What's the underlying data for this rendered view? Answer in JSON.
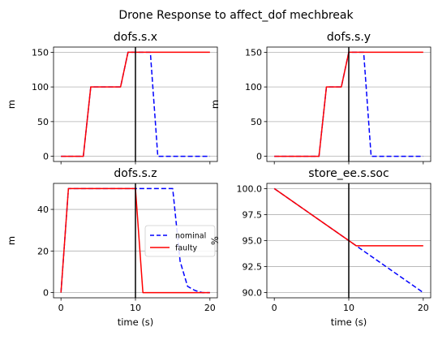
{
  "figure": {
    "title": "Drone Response to affect_dof mechbreak"
  },
  "colors": {
    "nominal": "#0000ff",
    "faulty": "#ff0000",
    "grid": "#b0b0b0",
    "vline": "#000000"
  },
  "chart_data": [
    {
      "type": "line",
      "title": "dofs.s.x",
      "xlabel": "",
      "ylabel": "m",
      "xlim": [
        -1,
        21
      ],
      "ylim": [
        -7.5,
        157.5
      ],
      "xticks": [
        0,
        10,
        20
      ],
      "yticks": [
        0,
        50,
        100,
        150
      ],
      "xticklabels": [
        "",
        "",
        ""
      ],
      "yticklabels": [
        "0",
        "50",
        "100",
        "150"
      ],
      "grid": "y",
      "vline": 10,
      "series": [
        {
          "name": "nominal",
          "style": "dashed",
          "x": [
            0,
            1,
            2,
            3,
            4,
            5,
            6,
            7,
            8,
            9,
            10,
            11,
            12,
            13,
            14,
            15,
            16,
            17,
            18,
            19,
            20
          ],
          "y": [
            0,
            0,
            0,
            0,
            100,
            100,
            100,
            100,
            100,
            150,
            150,
            150,
            150,
            0,
            0,
            0,
            0,
            0,
            0,
            0,
            0
          ]
        },
        {
          "name": "faulty",
          "style": "solid",
          "x": [
            0,
            1,
            2,
            3,
            4,
            5,
            6,
            7,
            8,
            9,
            10,
            11,
            12,
            13,
            14,
            15,
            16,
            17,
            18,
            19,
            20
          ],
          "y": [
            0,
            0,
            0,
            0,
            100,
            100,
            100,
            100,
            100,
            150,
            150,
            150,
            150,
            150,
            150,
            150,
            150,
            150,
            150,
            150,
            150
          ]
        }
      ]
    },
    {
      "type": "line",
      "title": "dofs.s.y",
      "xlabel": "",
      "ylabel": "m",
      "xlim": [
        -1,
        21
      ],
      "ylim": [
        -7.5,
        157.5
      ],
      "xticks": [
        0,
        10,
        20
      ],
      "yticks": [
        0,
        50,
        100,
        150
      ],
      "xticklabels": [
        "",
        "",
        ""
      ],
      "yticklabels": [
        "0",
        "50",
        "100",
        "150"
      ],
      "grid": "y",
      "vline": 10,
      "series": [
        {
          "name": "nominal",
          "style": "dashed",
          "x": [
            0,
            1,
            2,
            3,
            4,
            5,
            6,
            7,
            8,
            9,
            10,
            11,
            12,
            13,
            14,
            15,
            16,
            17,
            18,
            19,
            20
          ],
          "y": [
            0,
            0,
            0,
            0,
            0,
            0,
            0,
            100,
            100,
            100,
            150,
            150,
            150,
            0,
            0,
            0,
            0,
            0,
            0,
            0,
            0
          ]
        },
        {
          "name": "faulty",
          "style": "solid",
          "x": [
            0,
            1,
            2,
            3,
            4,
            5,
            6,
            7,
            8,
            9,
            10,
            11,
            12,
            13,
            14,
            15,
            16,
            17,
            18,
            19,
            20
          ],
          "y": [
            0,
            0,
            0,
            0,
            0,
            0,
            0,
            100,
            100,
            100,
            150,
            150,
            150,
            150,
            150,
            150,
            150,
            150,
            150,
            150,
            150
          ]
        }
      ]
    },
    {
      "type": "line",
      "title": "dofs.s.z",
      "xlabel": "time (s)",
      "ylabel": "m",
      "xlim": [
        -1,
        21
      ],
      "ylim": [
        -2.5,
        52.5
      ],
      "xticks": [
        0,
        10,
        20
      ],
      "yticks": [
        0,
        20,
        40
      ],
      "xticklabels": [
        "0",
        "10",
        "20"
      ],
      "yticklabels": [
        "0",
        "20",
        "40"
      ],
      "grid": "y",
      "vline": 10,
      "legend": {
        "position": "center-right",
        "entries": [
          "nominal",
          "faulty"
        ]
      },
      "series": [
        {
          "name": "nominal",
          "style": "dashed",
          "x": [
            0,
            1,
            2,
            3,
            4,
            5,
            6,
            7,
            8,
            9,
            10,
            11,
            12,
            13,
            14,
            15,
            16,
            17,
            18,
            19,
            20
          ],
          "y": [
            0,
            50,
            50,
            50,
            50,
            50,
            50,
            50,
            50,
            50,
            50,
            50,
            50,
            50,
            50,
            50,
            15,
            3,
            1,
            0,
            0
          ]
        },
        {
          "name": "faulty",
          "style": "solid",
          "x": [
            0,
            1,
            2,
            3,
            4,
            5,
            6,
            7,
            8,
            9,
            10,
            11,
            12,
            13,
            14,
            15,
            16,
            17,
            18,
            19,
            20
          ],
          "y": [
            0,
            50,
            50,
            50,
            50,
            50,
            50,
            50,
            50,
            50,
            50,
            0,
            0,
            0,
            0,
            0,
            0,
            0,
            0,
            0,
            0
          ]
        }
      ]
    },
    {
      "type": "line",
      "title": "store_ee.s.soc",
      "xlabel": "time (s)",
      "ylabel": "%",
      "xlim": [
        -1,
        21
      ],
      "ylim": [
        89.5,
        100.5
      ],
      "xticks": [
        0,
        10,
        20
      ],
      "yticks": [
        90.0,
        92.5,
        95.0,
        97.5,
        100.0
      ],
      "xticklabels": [
        "0",
        "10",
        "20"
      ],
      "yticklabels": [
        "90.0",
        "92.5",
        "95.0",
        "97.5",
        "100.0"
      ],
      "grid": "y",
      "vline": 10,
      "series": [
        {
          "name": "nominal",
          "style": "dashed",
          "x": [
            0,
            10,
            20
          ],
          "y": [
            100,
            95,
            90
          ]
        },
        {
          "name": "faulty",
          "style": "solid",
          "x": [
            0,
            11,
            20
          ],
          "y": [
            100,
            94.5,
            94.5
          ]
        }
      ]
    }
  ]
}
